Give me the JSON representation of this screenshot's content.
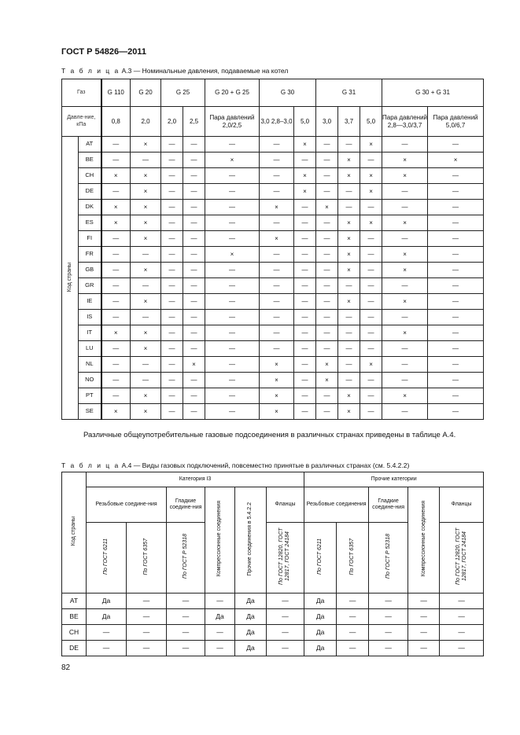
{
  "header": {
    "title": "ГОСТ Р 54826—2011"
  },
  "table_a3": {
    "caption_prefix": "Т а б л и ц а",
    "caption": "А.3 — Номинальные давления, подаваемые на котел",
    "gas_label": "Газ",
    "pressure_label": "Давле-ние, кПа",
    "country_label": "Код страны",
    "gases": [
      "G 110",
      "G 20",
      "G 25",
      "G 20 + G 25",
      "G 30",
      "G 31",
      "G 30 + G 31"
    ],
    "pressures": [
      "0,8",
      "2,0",
      "2,0",
      "2,5",
      "Пара давлений 2,0/2,5",
      "3,0 2,8–3,0",
      "5,0",
      "3,0",
      "3,7",
      "5,0",
      "Пара давлений 2,8—3,0/3,7",
      "Пара давлений 5,0/6,7"
    ],
    "rows": [
      {
        "code": "AT",
        "v": [
          "—",
          "×",
          "—",
          "—",
          "—",
          "—",
          "×",
          "—",
          "—",
          "×",
          "—",
          "—"
        ]
      },
      {
        "code": "BE",
        "v": [
          "—",
          "—",
          "—",
          "—",
          "×",
          "—",
          "—",
          "—",
          "×",
          "—",
          "×",
          "×"
        ]
      },
      {
        "code": "CH",
        "v": [
          "×",
          "×",
          "—",
          "—",
          "—",
          "—",
          "×",
          "—",
          "×",
          "×",
          "×",
          "—"
        ]
      },
      {
        "code": "DE",
        "v": [
          "—",
          "×",
          "—",
          "—",
          "—",
          "—",
          "×",
          "—",
          "—",
          "×",
          "—",
          "—"
        ]
      },
      {
        "code": "DK",
        "v": [
          "×",
          "×",
          "—",
          "—",
          "—",
          "×",
          "—",
          "×",
          "—",
          "—",
          "—",
          "—"
        ]
      },
      {
        "code": "ES",
        "v": [
          "×",
          "×",
          "—",
          "—",
          "—",
          "—",
          "—",
          "—",
          "×",
          "×",
          "×",
          "—"
        ]
      },
      {
        "code": "FI",
        "v": [
          "—",
          "×",
          "—",
          "—",
          "—",
          "×",
          "—",
          "—",
          "×",
          "—",
          "—",
          "—"
        ]
      },
      {
        "code": "FR",
        "v": [
          "—",
          "—",
          "—",
          "—",
          "×",
          "—",
          "—",
          "—",
          "×",
          "—",
          "×",
          "—"
        ]
      },
      {
        "code": "GB",
        "v": [
          "—",
          "×",
          "—",
          "—",
          "—",
          "—",
          "—",
          "—",
          "×",
          "—",
          "×",
          "—"
        ]
      },
      {
        "code": "GR",
        "v": [
          "—",
          "—",
          "—",
          "—",
          "—",
          "—",
          "—",
          "—",
          "—",
          "—",
          "—",
          "—"
        ]
      },
      {
        "code": "IE",
        "v": [
          "—",
          "×",
          "—",
          "—",
          "—",
          "—",
          "—",
          "—",
          "×",
          "—",
          "×",
          "—"
        ]
      },
      {
        "code": "IS",
        "v": [
          "—",
          "—",
          "—",
          "—",
          "—",
          "—",
          "—",
          "—",
          "—",
          "—",
          "—",
          "—"
        ]
      },
      {
        "code": "IT",
        "v": [
          "×",
          "×",
          "—",
          "—",
          "—",
          "—",
          "—",
          "—",
          "—",
          "—",
          "×",
          "—"
        ]
      },
      {
        "code": "LU",
        "v": [
          "—",
          "×",
          "—",
          "—",
          "—",
          "—",
          "—",
          "—",
          "—",
          "—",
          "—",
          "—"
        ]
      },
      {
        "code": "NL",
        "v": [
          "—",
          "—",
          "—",
          "×",
          "—",
          "×",
          "—",
          "×",
          "—",
          "×",
          "—",
          "—"
        ]
      },
      {
        "code": "NO",
        "v": [
          "—",
          "—",
          "—",
          "—",
          "—",
          "×",
          "—",
          "×",
          "—",
          "—",
          "—",
          "—"
        ]
      },
      {
        "code": "PT",
        "v": [
          "—",
          "×",
          "—",
          "—",
          "—",
          "×",
          "—",
          "—",
          "×",
          "—",
          "×",
          "—"
        ]
      },
      {
        "code": "SE",
        "v": [
          "×",
          "×",
          "—",
          "—",
          "—",
          "×",
          "—",
          "—",
          "×",
          "—",
          "—",
          "—"
        ]
      }
    ]
  },
  "paragraph": "Различные общеупотребительные газовые подсоединения в различных странах приведены в таблице А.4.",
  "table_a4": {
    "caption_prefix": "Т а б л и ц а",
    "caption": "А.4 — Виды газовых подключений, повсеместно принятые в различных странах (см. 5.4.2.2)",
    "country_label": "Код страны",
    "cat_i3": "Категория I3",
    "cat_other": "Прочие категории",
    "groups": {
      "threaded": "Резьбовые соедине-ния",
      "threaded2": "Резьбовые соединения",
      "smooth": "Гладкие соедине-ния",
      "compression": "Компрессионные соединения",
      "other_conn": "Прочие соединения в 5.4.2.2",
      "flanges": "Фланцы"
    },
    "standards": {
      "g6211": "По ГОСТ 6211",
      "g6357": "По ГОСТ 6357",
      "g52318": "По ГОСТ Р 52318",
      "flange_std": "По ГОСТ 12820, ГОСТ 12817, ГОСТ 24184"
    },
    "rows": [
      {
        "code": "AT",
        "v": [
          "Да",
          "—",
          "—",
          "—",
          "Да",
          "—",
          "Да",
          "—",
          "—",
          "—",
          "—"
        ]
      },
      {
        "code": "BE",
        "v": [
          "Да",
          "—",
          "—",
          "Да",
          "Да",
          "—",
          "Да",
          "—",
          "—",
          "—",
          "—"
        ]
      },
      {
        "code": "CH",
        "v": [
          "—",
          "—",
          "—",
          "—",
          "Да",
          "—",
          "Да",
          "—",
          "—",
          "—",
          "—"
        ]
      },
      {
        "code": "DE",
        "v": [
          "—",
          "—",
          "—",
          "—",
          "Да",
          "—",
          "Да",
          "—",
          "—",
          "—",
          "—"
        ]
      }
    ]
  },
  "footer": {
    "page_number": "82"
  }
}
